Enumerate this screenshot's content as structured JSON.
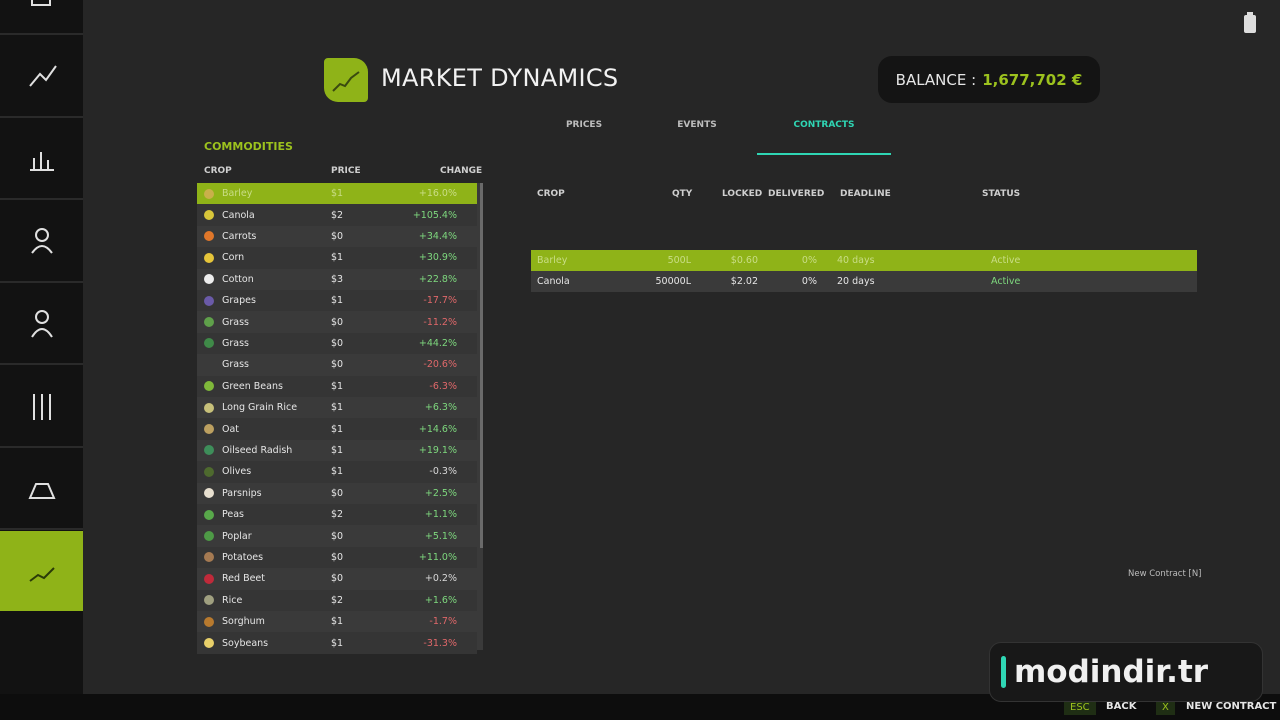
{
  "header": {
    "title": "MARKET DYNAMICS",
    "balance_label": "BALANCE :",
    "balance_value": "1,677,702 €"
  },
  "tabs": {
    "items": [
      "PRICES",
      "EVENTS",
      "CONTRACTS"
    ],
    "active": 2
  },
  "commodities": {
    "title": "COMMODITIES",
    "columns": [
      "CROP",
      "PRICE",
      "CHANGE"
    ],
    "selected": 0,
    "rows": [
      [
        "Barley",
        "$1",
        "+16.0%"
      ],
      [
        "Canola",
        "$2",
        "+105.4%"
      ],
      [
        "Carrots",
        "$0",
        "+34.4%"
      ],
      [
        "Corn",
        "$1",
        "+30.9%"
      ],
      [
        "Cotton",
        "$3",
        "+22.8%"
      ],
      [
        "Grapes",
        "$1",
        "-17.7%"
      ],
      [
        "Grass",
        "$0",
        "-11.2%"
      ],
      [
        "Grass",
        "$0",
        "+44.2%"
      ],
      [
        "Grass",
        "$0",
        "-20.6%"
      ],
      [
        "Green Beans",
        "$1",
        "-6.3%"
      ],
      [
        "Long Grain Rice",
        "$1",
        "+6.3%"
      ],
      [
        "Oat",
        "$1",
        "+14.6%"
      ],
      [
        "Oilseed Radish",
        "$1",
        "+19.1%"
      ],
      [
        "Olives",
        "$1",
        "-0.3%"
      ],
      [
        "Parsnips",
        "$0",
        "+2.5%"
      ],
      [
        "Peas",
        "$2",
        "+1.1%"
      ],
      [
        "Poplar",
        "$0",
        "+5.1%"
      ],
      [
        "Potatoes",
        "$0",
        "+11.0%"
      ],
      [
        "Red Beet",
        "$0",
        "+0.2%"
      ],
      [
        "Rice",
        "$2",
        "+1.6%"
      ],
      [
        "Sorghum",
        "$1",
        "-1.7%"
      ],
      [
        "Soybeans",
        "$1",
        "-31.3%"
      ]
    ]
  },
  "contracts": {
    "columns": [
      "CROP",
      "QTY",
      "LOCKED",
      "DELIVERED",
      "DEADLINE",
      "STATUS"
    ],
    "selected": 0,
    "rows": [
      [
        "Barley",
        "500L",
        "$0.60",
        "0%",
        "40 days",
        "Active"
      ],
      [
        "Canola",
        "50000L",
        "$2.02",
        "0%",
        "20 days",
        "Active"
      ]
    ],
    "new_contract": "New Contract [N]"
  },
  "footer": {
    "actions": [
      {
        "key": "ESC",
        "label": "BACK"
      },
      {
        "key": "X",
        "label": "NEW CONTRACT"
      }
    ]
  },
  "watermark": "modindir.tr"
}
